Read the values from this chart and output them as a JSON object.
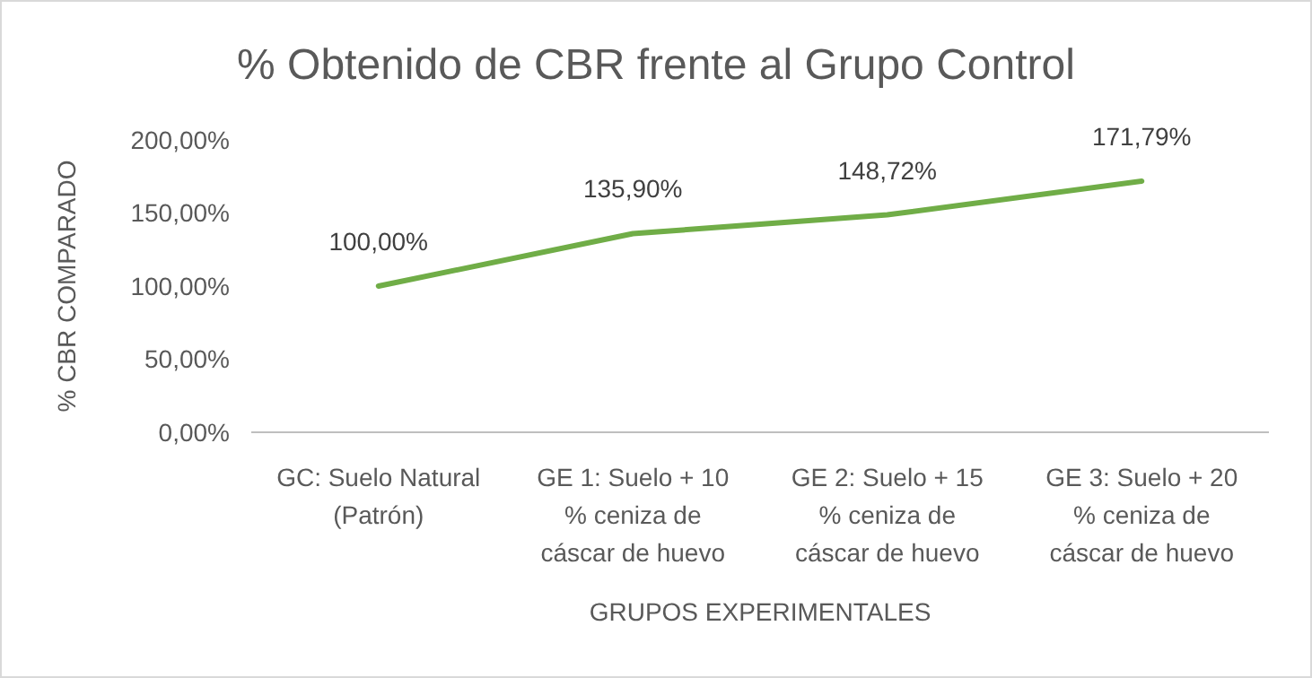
{
  "chart_data": {
    "type": "line",
    "title": "% Obtenido  de CBR frente al Grupo  Control",
    "xlabel": "GRUPOS EXPERIMENTALES",
    "ylabel": "% CBR COMPARADO",
    "categories": [
      "GC: Suelo Natural  (Patrón)",
      "GE 1: Suelo + 10 % ceniza de cáscar de huevo",
      "GE 2: Suelo + 15 % ceniza de cáscar de huevo",
      "GE 3: Suelo + 20 % ceniza de cáscar de huevo"
    ],
    "series": [
      {
        "color": "#70ad47",
        "values": [
          100,
          135.9,
          148.72,
          171.79
        ],
        "value_labels": [
          "100,00%",
          "135,90%",
          "148,72%",
          "171,79%"
        ]
      }
    ],
    "ylim": [
      0,
      200
    ],
    "yticks": [
      {
        "value": 0,
        "label": "0,00%"
      },
      {
        "value": 50,
        "label": "50,00%"
      },
      {
        "value": 100,
        "label": "100,00%"
      },
      {
        "value": 150,
        "label": "150,00%"
      },
      {
        "value": 200,
        "label": "200,00%"
      }
    ],
    "grid": false,
    "marker": "none",
    "line_style": "solid"
  }
}
